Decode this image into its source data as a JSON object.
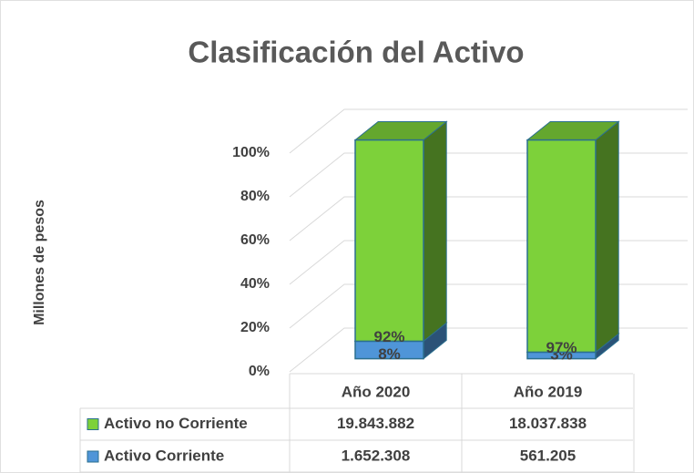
{
  "chart_data": {
    "type": "bar3d_stacked",
    "title": "Clasificación del Activo",
    "y_label": "Millones de pesos",
    "categories": [
      "Año 2020",
      "Año 2019"
    ],
    "series": [
      {
        "name": "Activo Corriente",
        "color": "#4f95d8",
        "values": [
          8,
          3
        ],
        "value_labels": [
          "8%",
          "3%"
        ],
        "table_values": [
          "1.652.308",
          "561.205"
        ]
      },
      {
        "name": "Activo no Corriente",
        "color": "#7dd13a",
        "values": [
          92,
          97
        ],
        "value_labels": [
          "92%",
          "97%"
        ],
        "table_values": [
          "19.843.882",
          "18.037.838"
        ]
      }
    ],
    "ylim": [
      0,
      100
    ],
    "yticks": [
      {
        "value": 0,
        "label": "0%"
      },
      {
        "value": 20,
        "label": "20%"
      },
      {
        "value": 40,
        "label": "40%"
      },
      {
        "value": 60,
        "label": "60%"
      },
      {
        "value": 80,
        "label": "80%"
      },
      {
        "value": 100,
        "label": "100%"
      }
    ],
    "grid": true
  }
}
